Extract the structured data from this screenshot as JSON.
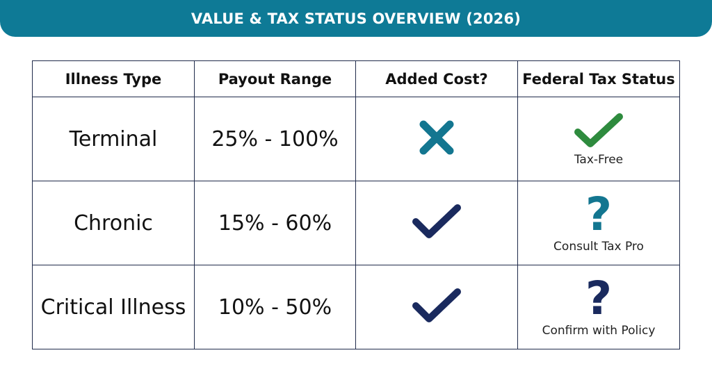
{
  "title": "VALUE & TAX STATUS OVERVIEW (2026)",
  "colors": {
    "banner": "#0e7a96",
    "teal": "#137690",
    "navy": "#1a2a5e",
    "green": "#2e8b3e"
  },
  "table": {
    "headers": [
      "Illness Type",
      "Payout Range",
      "Added Cost?",
      "Federal Tax Status"
    ],
    "rows": [
      {
        "illness_type": "Terminal",
        "payout_range": "25% - 100%",
        "added_cost_icon": "x-mark-icon",
        "tax_icon": "check-mark-icon",
        "tax_status": "Tax-Free"
      },
      {
        "illness_type": "Chronic",
        "payout_range": "15% - 60%",
        "added_cost_icon": "check-mark-icon",
        "tax_icon": "question-mark-icon",
        "tax_icon_glyph": "?",
        "tax_status": "Consult Tax Pro"
      },
      {
        "illness_type": "Critical Illness",
        "payout_range": "10% - 50%",
        "added_cost_icon": "check-mark-icon",
        "tax_icon": "question-mark-icon",
        "tax_icon_glyph": "?",
        "tax_status": "Confirm with Policy"
      }
    ]
  }
}
